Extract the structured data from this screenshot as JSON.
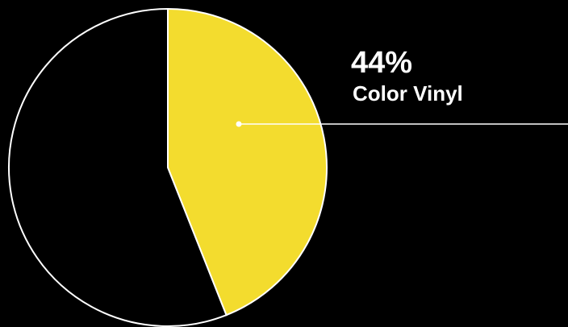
{
  "chart_data": {
    "type": "pie",
    "categories": [
      "Color Vinyl",
      null
    ],
    "values": [
      44,
      56
    ],
    "value_labels": [
      "44%",
      null
    ],
    "colors": [
      "#f3dc2e",
      "#000000"
    ]
  }
}
